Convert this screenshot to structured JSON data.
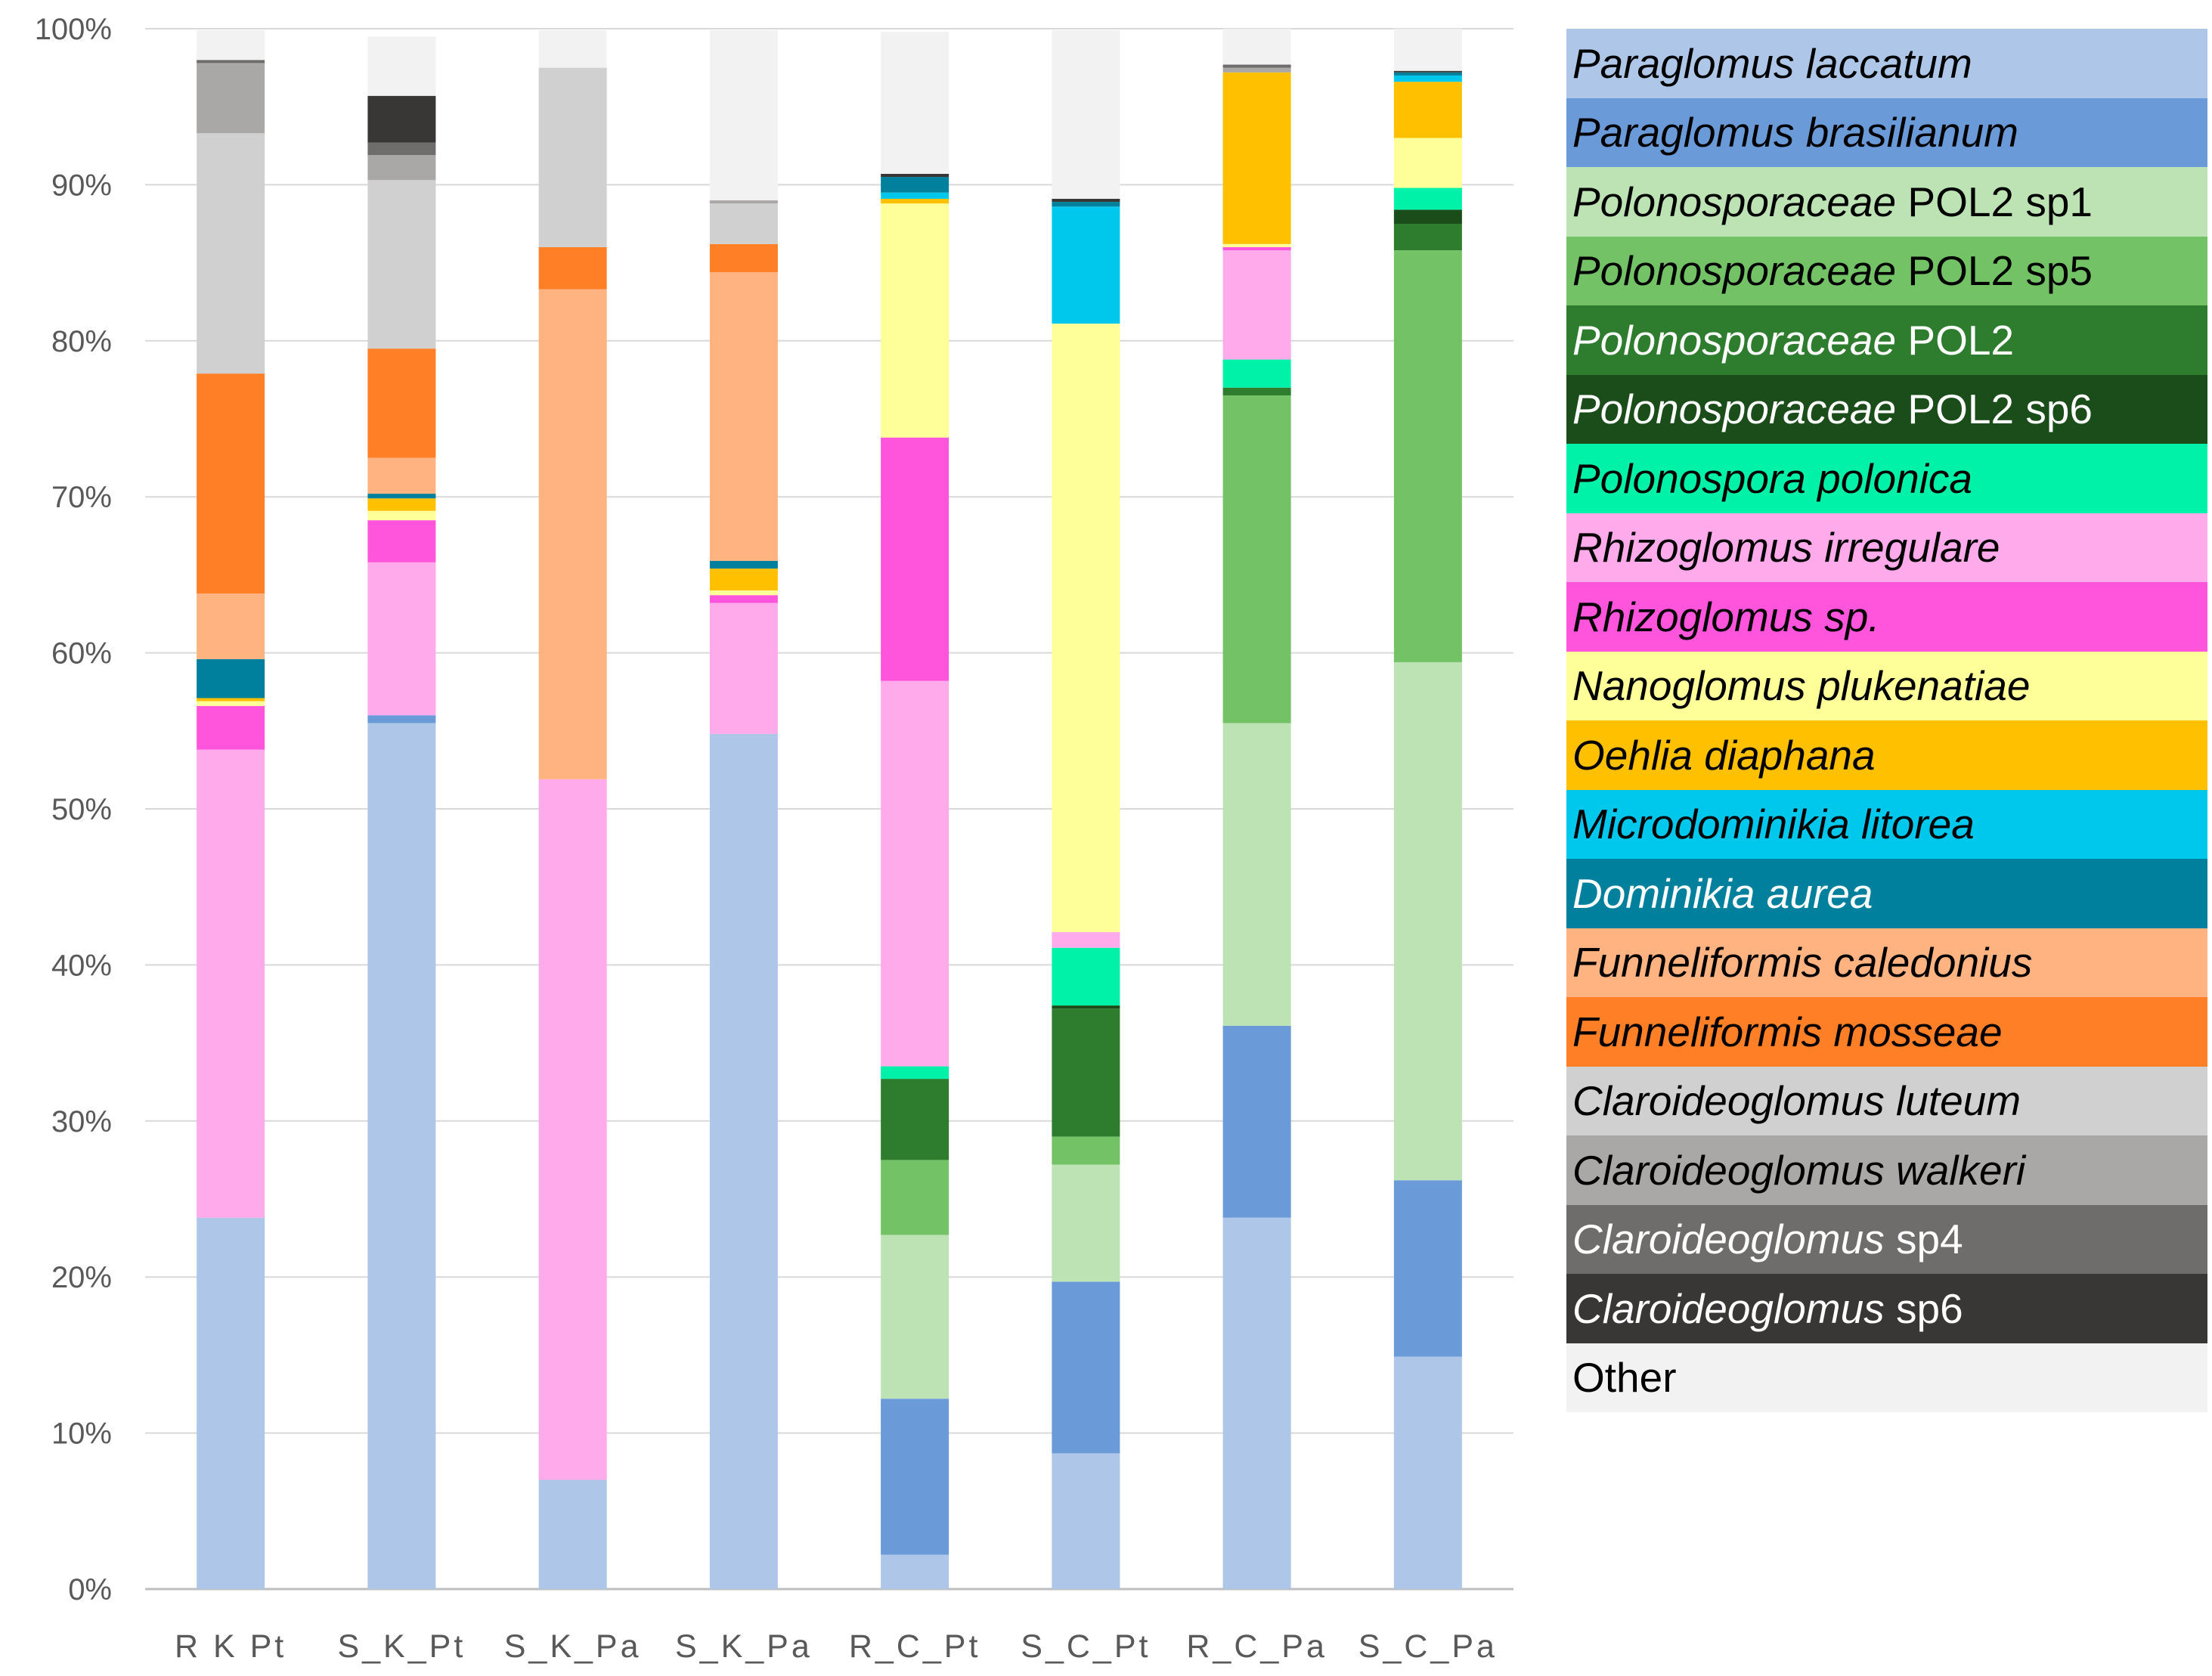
{
  "chart_data": {
    "type": "bar",
    "stacked": true,
    "y_axis": {
      "ylim": [
        0,
        100
      ],
      "tick_labels": [
        "0%",
        "10%",
        "20%",
        "30%",
        "40%",
        "50%",
        "60%",
        "70%",
        "80%",
        "90%",
        "100%"
      ],
      "grid": true
    },
    "categories": [
      "R K Pt",
      "S_K_Pt",
      "S_K_Pa",
      "S_K_Pa",
      "R_C_Pt",
      "S_C_Pt",
      "R_C_Pa",
      "S_C_Pa"
    ],
    "legend": [
      {
        "italic": "Paraglomus laccatum",
        "suffix": "",
        "color": "#aec7e8",
        "text_color": "#000000"
      },
      {
        "italic": "Paraglomus brasilianum",
        "suffix": "",
        "color": "#6a9bd8",
        "text_color": "#000000"
      },
      {
        "italic": "Polonosporaceae",
        "suffix": " POL2 sp1",
        "color": "#bde3b4",
        "text_color": "#000000"
      },
      {
        "italic": "Polonosporaceae",
        "suffix": " POL2 sp5",
        "color": "#73c366",
        "text_color": "#000000"
      },
      {
        "italic": "Polonosporaceae",
        "suffix": " POL2",
        "color": "#2e7d2e",
        "text_color": "#ffffff"
      },
      {
        "italic": "Polonosporaceae",
        "suffix": " POL2 sp6",
        "color": "#1a4d1a",
        "text_color": "#ffffff"
      },
      {
        "italic": "Polonospora polonica",
        "suffix": "",
        "color": "#00f2a8",
        "text_color": "#000000"
      },
      {
        "italic": "Rhizoglomus irregulare",
        "suffix": "",
        "color": "#ffaaeb",
        "text_color": "#000000"
      },
      {
        "italic": "Rhizoglomus sp.",
        "suffix": "",
        "color": "#ff55dd",
        "text_color": "#000000"
      },
      {
        "italic": "Nanoglomus plukenatiae",
        "suffix": "",
        "color": "#ffff99",
        "text_color": "#000000"
      },
      {
        "italic": "Oehlia diaphana",
        "suffix": "",
        "color": "#ffc000",
        "text_color": "#000000"
      },
      {
        "italic": "Microdominikia litorea",
        "suffix": "",
        "color": "#00c8ec",
        "text_color": "#000000"
      },
      {
        "italic": "Dominikia aurea",
        "suffix": "",
        "color": "#00809c",
        "text_color": "#ffffff"
      },
      {
        "italic": "Funneliformis caledonius",
        "suffix": "",
        "color": "#ffb381",
        "text_color": "#000000"
      },
      {
        "italic": "Funneliformis mosseae",
        "suffix": "",
        "color": "#ff7f27",
        "text_color": "#000000"
      },
      {
        "italic": "Claroideoglomus luteum",
        "suffix": "",
        "color": "#d0d0d0",
        "text_color": "#000000"
      },
      {
        "italic": "Claroideoglomus walkeri",
        "suffix": "",
        "color": "#aaa7a7",
        "text_color": "#000000"
      },
      {
        "italic": "Claroideoglomus",
        "suffix": " sp4",
        "color": "#6f6c6c",
        "text_color": "#ffffff"
      },
      {
        "italic": "Claroideoglomus",
        "suffix": " sp6",
        "color": "#393636",
        "text_color": "#ffffff"
      },
      {
        "italic": "",
        "suffix": "Other",
        "color": "#f2f2f2",
        "text_color": "#000000"
      }
    ],
    "series": [
      {
        "name": "Paraglomus laccatum",
        "values": [
          23.8,
          55.5,
          7.0,
          54.8,
          2.2,
          8.7,
          23.8,
          14.9
        ]
      },
      {
        "name": "Paraglomus brasilianum",
        "values": [
          0,
          0.5,
          0,
          0,
          10.0,
          11.0,
          12.3,
          11.3
        ]
      },
      {
        "name": "Polonosporaceae POL2 sp1",
        "values": [
          0,
          0,
          0,
          0,
          10.5,
          7.5,
          19.4,
          33.2
        ]
      },
      {
        "name": "Polonosporaceae POL2 sp5",
        "values": [
          0,
          0,
          0,
          0,
          4.8,
          1.8,
          21.0,
          26.4
        ]
      },
      {
        "name": "Polonosporaceae POL2",
        "values": [
          0,
          0,
          0,
          0,
          5.2,
          8.2,
          0.5,
          1.7
        ]
      },
      {
        "name": "Polonosporaceae POL2 sp6",
        "values": [
          0,
          0,
          0,
          0,
          0,
          0.2,
          0,
          0.9
        ]
      },
      {
        "name": "Polonospora polonica",
        "values": [
          0,
          0,
          0,
          0,
          0.8,
          3.7,
          1.8,
          1.4
        ]
      },
      {
        "name": "Rhizoglomus irregulare",
        "values": [
          30.0,
          9.8,
          44.9,
          8.4,
          24.7,
          1.0,
          7.0,
          0
        ]
      },
      {
        "name": "Rhizoglomus sp.",
        "values": [
          2.8,
          2.7,
          0,
          0.5,
          15.6,
          0,
          0.2,
          0
        ]
      },
      {
        "name": "Nanoglomus plukenatiae",
        "values": [
          0.3,
          0.6,
          0,
          0.3,
          15.0,
          39.0,
          0.2,
          3.2
        ]
      },
      {
        "name": "Oehlia diaphana",
        "values": [
          0.2,
          0.8,
          0,
          1.4,
          0.3,
          0,
          11.0,
          3.6
        ]
      },
      {
        "name": "Microdominikia litorea",
        "values": [
          0,
          0,
          0,
          0,
          0.4,
          7.5,
          0,
          0.4
        ]
      },
      {
        "name": "Dominikia aurea",
        "values": [
          2.5,
          0.3,
          0,
          0.5,
          1.0,
          0.3,
          0,
          0.2
        ]
      },
      {
        "name": "Funneliformis caledonius",
        "values": [
          4.2,
          2.3,
          31.4,
          18.5,
          0,
          0,
          0,
          0
        ]
      },
      {
        "name": "Funneliformis mosseae",
        "values": [
          14.1,
          7.0,
          2.7,
          1.8,
          0,
          0,
          0,
          0
        ]
      },
      {
        "name": "Claroideoglomus luteum",
        "values": [
          15.4,
          10.8,
          11.5,
          2.6,
          0,
          0,
          0,
          0
        ]
      },
      {
        "name": "Claroideoglomus walkeri",
        "values": [
          4.5,
          1.6,
          0,
          0.2,
          0,
          0,
          0.3,
          0
        ]
      },
      {
        "name": "Claroideoglomus sp4",
        "values": [
          0.2,
          0.8,
          0,
          0,
          0,
          0,
          0.2,
          0
        ]
      },
      {
        "name": "Claroideoglomus sp6",
        "values": [
          0,
          3.0,
          0,
          0,
          0.2,
          0.2,
          0,
          0.1
        ]
      },
      {
        "name": "Other",
        "values": [
          1.9,
          3.8,
          2.4,
          10.9,
          9.1,
          10.8,
          2.3,
          2.7
        ]
      }
    ]
  }
}
